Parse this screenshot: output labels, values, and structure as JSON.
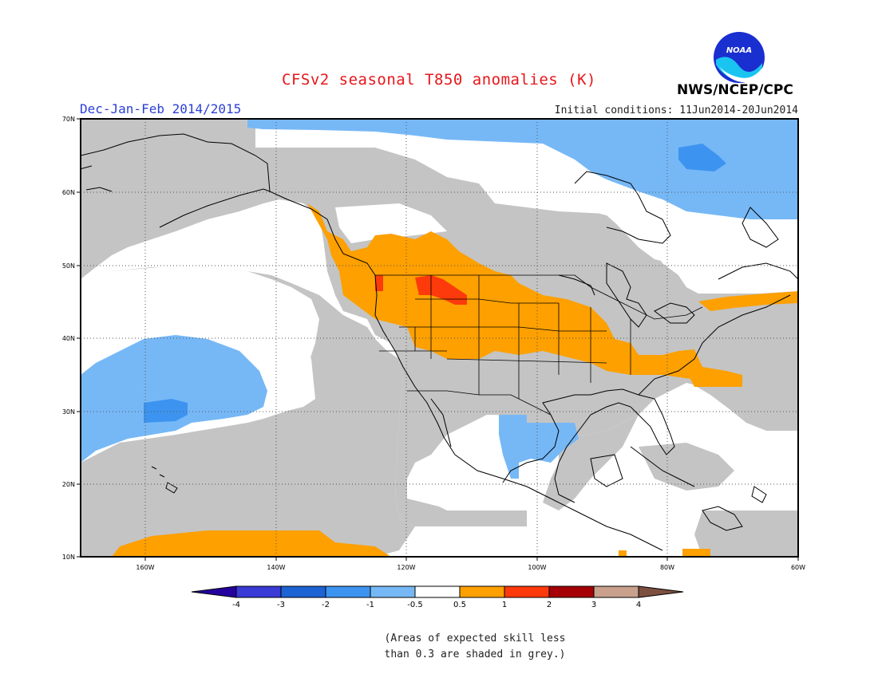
{
  "title": "CFSv2 seasonal T850 anomalies (K)",
  "season": "Dec-Jan-Feb 2014/2015",
  "initial_conditions": "Initial conditions: 11Jun2014-20Jun2014",
  "agency": "NWS/NCEP/CPC",
  "logo_text": "NOAA",
  "note_line1": "(Areas of expected skill less",
  "note_line2": "than 0.3 are shaded in grey.)",
  "map": {
    "lat_labels": [
      "70N",
      "60N",
      "50N",
      "40N",
      "30N",
      "20N",
      "10N"
    ],
    "lon_labels": [
      "160W",
      "140W",
      "120W",
      "100W",
      "80W",
      "60W"
    ],
    "lon_range": [
      -170,
      -60
    ],
    "lat_range": [
      10,
      70
    ],
    "grid": "dotted"
  },
  "colorbar": {
    "labels": [
      "-4",
      "-3",
      "-2",
      "-1",
      "-0.5",
      "0.5",
      "1",
      "2",
      "3",
      "4"
    ],
    "colors": [
      "#24009e",
      "#3a3ad6",
      "#1c64d4",
      "#3d94f0",
      "#76b8f6",
      "#ffffff",
      "#fda000",
      "#fc3a0b",
      "#a40006",
      "#c8a08c",
      "#7c5040"
    ]
  },
  "palette": {
    "grey": "#c4c4c4",
    "white": "#ffffff",
    "light_blue": "#76b8f6",
    "medium_blue": "#3d94f0",
    "orange": "#fda000",
    "red": "#fc3a0b"
  }
}
